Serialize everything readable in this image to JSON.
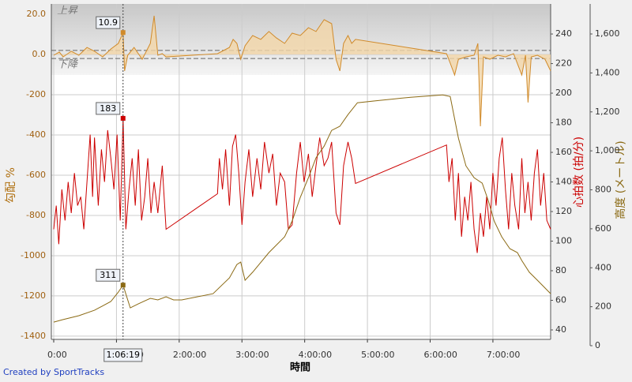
{
  "chart_data": {
    "type": "multi_axis_line",
    "x_title": "時間",
    "y_title": "勾配 %",
    "y2_title": "心拍数 (拍/分)",
    "y3_title": "高度 (メートル)",
    "band_labels": [
      "上昇",
      "下降"
    ],
    "footer": "Created by SportTracks",
    "xlim": [
      0,
      7.92
    ],
    "xticks": [
      {
        "value": 0,
        "label": "0:00"
      },
      {
        "value": 1,
        "label": "1:00:00"
      },
      {
        "value": 2,
        "label": "2:00:00"
      },
      {
        "value": 3,
        "label": "3:00:00"
      },
      {
        "value": 4,
        "label": "4:00:00"
      },
      {
        "value": 5,
        "label": "5:00:00"
      },
      {
        "value": 6,
        "label": "6:00:00"
      },
      {
        "value": 7,
        "label": "7:00:00"
      }
    ],
    "ylim": [
      -141.6,
      25.1
    ],
    "yticks": [
      {
        "value": 20,
        "label": "20.0"
      },
      {
        "value": 0,
        "label": "0.0"
      }
    ],
    "left_axis_labels": [
      "-200",
      "-400",
      "-600",
      "-800",
      "-1000",
      "-1200",
      "-1400"
    ],
    "threshold_lines": [
      2,
      -2
    ],
    "y2lim": [
      33.6,
      260.3
    ],
    "y2ticks": [
      40,
      60,
      80,
      100,
      120,
      140,
      160,
      180,
      200,
      220,
      240
    ],
    "y3lim": [
      0,
      1754
    ],
    "y3ticks": [
      0,
      200,
      400,
      600,
      800,
      {
        "value": 1000,
        "label": "1,000"
      },
      {
        "value": 1200,
        "label": "1,200"
      },
      {
        "value": 1400,
        "label": "1,400"
      },
      {
        "value": 1600,
        "label": "1,600"
      }
    ],
    "grid": true,
    "cursor": {
      "x": 1.105,
      "label": "1:06:19",
      "values": [
        10.9,
        183,
        311
      ],
      "value_labels": [
        "10.9",
        "183",
        "311"
      ]
    },
    "series": [
      {
        "axis": "y",
        "color": "#d08a2a",
        "fill": "#f3d6a8",
        "x": [
          0,
          0.09,
          0.15,
          0.28,
          0.4,
          0.53,
          0.65,
          0.78,
          0.91,
          1.03,
          1.105,
          1.13,
          1.18,
          1.28,
          1.41,
          1.54,
          1.6,
          1.66,
          1.73,
          1.79,
          2.61,
          2.8,
          2.86,
          2.92,
          2.98,
          3.05,
          3.17,
          3.3,
          3.43,
          3.55,
          3.68,
          3.8,
          3.93,
          4.06,
          4.18,
          4.31,
          4.43,
          4.5,
          4.56,
          4.62,
          4.69,
          4.75,
          4.81,
          6.26,
          6.32,
          6.39,
          6.45,
          6.57,
          6.7,
          6.76,
          6.8,
          6.85,
          6.95,
          7.08,
          7.2,
          7.33,
          7.46,
          7.52,
          7.56,
          7.61,
          7.71,
          7.83,
          7.92
        ],
        "values": [
          -0.4,
          1.2,
          -1.2,
          1.6,
          -0.4,
          3.5,
          1.6,
          -1.2,
          2.7,
          5.5,
          10.9,
          -8.2,
          -0.4,
          3.5,
          -2.4,
          5.5,
          19.2,
          -0.4,
          0.4,
          -1.2,
          0.4,
          3.5,
          7.5,
          5.5,
          -2.4,
          4.3,
          9.4,
          7.5,
          11.4,
          8.2,
          5.5,
          10.6,
          9.4,
          13.3,
          11.4,
          17.3,
          15.3,
          -2.4,
          -8.2,
          5.5,
          9.4,
          5.5,
          7.5,
          0.4,
          -4.3,
          -10.2,
          -2.4,
          -1.2,
          -0.4,
          5.5,
          -35.7,
          -1.2,
          -2.4,
          -0.4,
          -1.2,
          0.4,
          -10.2,
          -0.4,
          -23.9,
          -1.2,
          -0.4,
          -2.4,
          -8.2
        ]
      },
      {
        "axis": "y2",
        "color": "#cc0000",
        "x": [
          0,
          0.04,
          0.08,
          0.13,
          0.18,
          0.23,
          0.28,
          0.33,
          0.38,
          0.43,
          0.48,
          0.53,
          0.58,
          0.62,
          0.65,
          0.71,
          0.76,
          0.81,
          0.86,
          0.91,
          0.96,
          1.01,
          1.06,
          1.105,
          1.15,
          1.2,
          1.25,
          1.3,
          1.35,
          1.4,
          1.45,
          1.5,
          1.55,
          1.6,
          1.66,
          1.73,
          1.79,
          2.61,
          2.64,
          2.69,
          2.74,
          2.8,
          2.85,
          2.9,
          2.95,
          3.0,
          3.05,
          3.11,
          3.17,
          3.24,
          3.3,
          3.36,
          3.43,
          3.49,
          3.55,
          3.61,
          3.68,
          3.74,
          3.8,
          3.87,
          3.93,
          3.99,
          4.06,
          4.12,
          4.18,
          4.24,
          4.31,
          4.37,
          4.43,
          4.5,
          4.56,
          4.62,
          4.69,
          4.75,
          4.81,
          6.26,
          6.3,
          6.35,
          6.4,
          6.45,
          6.5,
          6.55,
          6.6,
          6.65,
          6.7,
          6.75,
          6.8,
          6.85,
          6.9,
          6.95,
          7.0,
          7.05,
          7.1,
          7.15,
          7.2,
          7.25,
          7.3,
          7.35,
          7.41,
          7.46,
          7.51,
          7.56,
          7.61,
          7.66,
          7.71,
          7.76,
          7.81,
          7.86,
          7.92
        ],
        "values": [
          108,
          124,
          98,
          135,
          114,
          140,
          119,
          146,
          124,
          130,
          108,
          140,
          172,
          130,
          170,
          124,
          162,
          140,
          175,
          156,
          135,
          172,
          114,
          183,
          108,
          135,
          156,
          124,
          162,
          114,
          130,
          156,
          119,
          140,
          119,
          151,
          108,
          132,
          156,
          135,
          162,
          124,
          164,
          172,
          146,
          111,
          140,
          162,
          130,
          156,
          135,
          167,
          146,
          159,
          124,
          146,
          140,
          108,
          111,
          146,
          167,
          140,
          159,
          130,
          151,
          170,
          151,
          156,
          167,
          119,
          111,
          151,
          167,
          156,
          139,
          165,
          140,
          156,
          114,
          146,
          103,
          130,
          114,
          140,
          108,
          92,
          119,
          103,
          130,
          108,
          146,
          124,
          156,
          170,
          135,
          108,
          146,
          124,
          108,
          156,
          119,
          140,
          114,
          146,
          162,
          124,
          146,
          114,
          108
        ]
      },
      {
        "axis": "y3",
        "color": "#8b6a14",
        "x": [
          0,
          0.15,
          0.4,
          0.65,
          0.91,
          1.03,
          1.105,
          1.16,
          1.22,
          1.35,
          1.54,
          1.66,
          1.79,
          1.91,
          2.04,
          2.54,
          2.8,
          2.92,
          2.98,
          3.05,
          3.17,
          3.43,
          3.68,
          3.8,
          3.93,
          4.06,
          4.18,
          4.31,
          4.43,
          4.56,
          4.69,
          4.84,
          5.19,
          5.44,
          5.69,
          6.2,
          6.32,
          6.45,
          6.57,
          6.7,
          6.83,
          6.93,
          7.02,
          7.14,
          7.27,
          7.39,
          7.46,
          7.58,
          7.71,
          7.83,
          7.92
        ],
        "values": [
          121,
          134,
          154,
          182,
          227,
          275,
          311,
          255,
          194,
          215,
          243,
          235,
          251,
          235,
          235,
          267,
          348,
          417,
          429,
          336,
          377,
          478,
          559,
          640,
          761,
          862,
          964,
          1024,
          1105,
          1126,
          1186,
          1247,
          1259,
          1267,
          1275,
          1287,
          1279,
          1065,
          923,
          862,
          834,
          741,
          640,
          559,
          498,
          478,
          437,
          377,
          336,
          296,
          267
        ]
      }
    ]
  }
}
